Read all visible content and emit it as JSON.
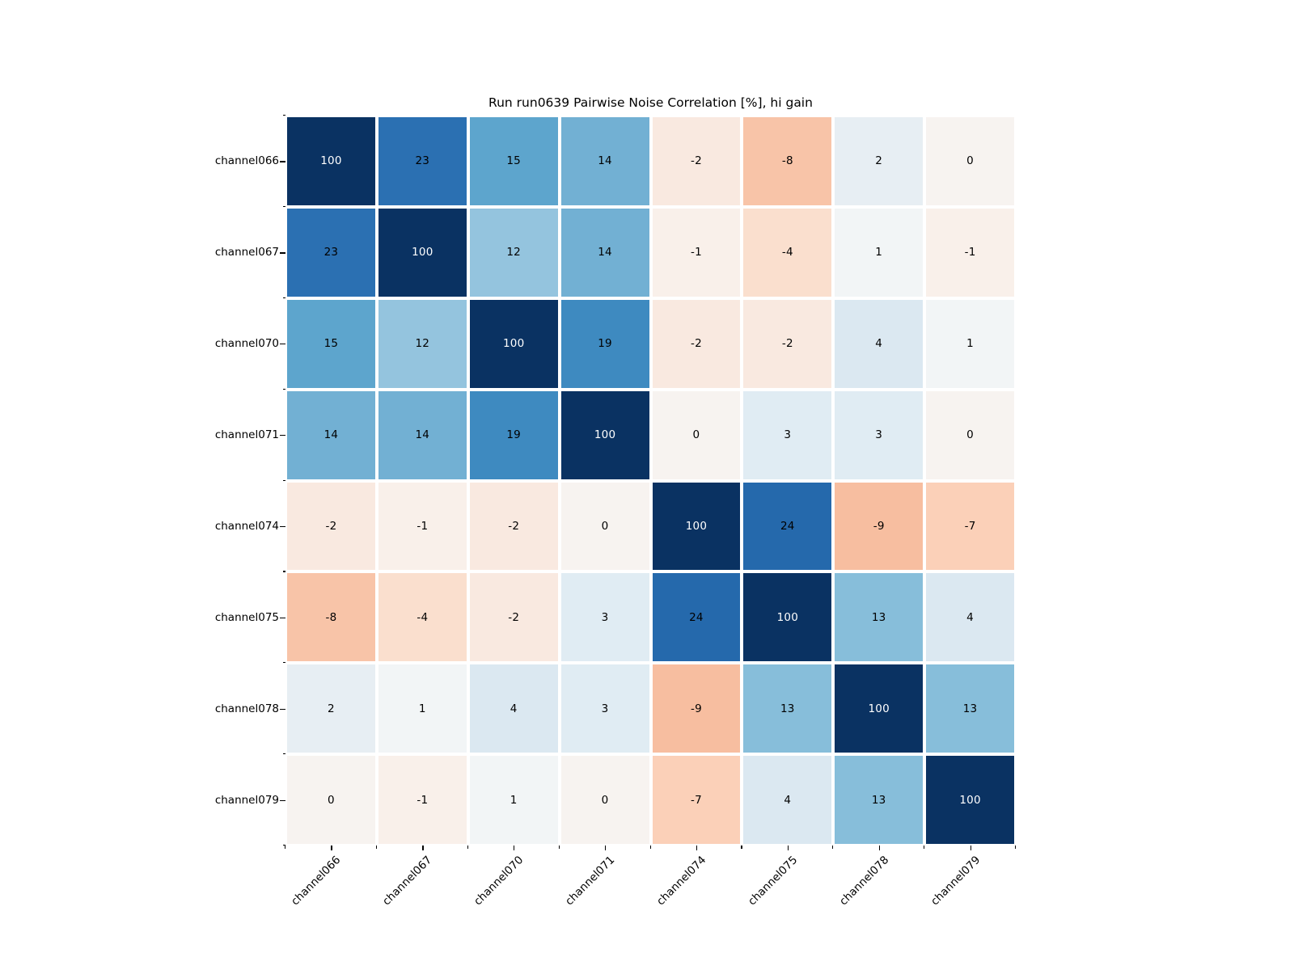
{
  "chart_data": {
    "type": "heatmap",
    "title": "Run run0639 Pairwise Noise Correlation [%], hi gain",
    "x_labels": [
      "channel066",
      "channel067",
      "channel070",
      "channel071",
      "channel074",
      "channel075",
      "channel078",
      "channel079"
    ],
    "y_labels": [
      "channel066",
      "channel067",
      "channel070",
      "channel071",
      "channel074",
      "channel075",
      "channel078",
      "channel079"
    ],
    "matrix": [
      [
        100,
        23,
        15,
        14,
        -2,
        -8,
        2,
        0
      ],
      [
        23,
        100,
        12,
        14,
        -1,
        -4,
        1,
        -1
      ],
      [
        15,
        12,
        100,
        19,
        -2,
        -2,
        4,
        1
      ],
      [
        14,
        14,
        19,
        100,
        0,
        3,
        3,
        0
      ],
      [
        -2,
        -1,
        -2,
        0,
        100,
        24,
        -9,
        -7
      ],
      [
        -8,
        -4,
        -2,
        3,
        24,
        100,
        13,
        4
      ],
      [
        2,
        1,
        4,
        3,
        -9,
        13,
        100,
        13
      ],
      [
        0,
        -1,
        1,
        0,
        -7,
        4,
        13,
        100
      ]
    ],
    "unit": "%",
    "colormap_name": "RdBu (blue = positive, red = negative)",
    "value_colors": {
      "100": "#0a3262",
      "24": "#2569ac",
      "23": "#2b70b2",
      "19": "#3e8ac0",
      "15": "#5da5cd",
      "14": "#72b0d3",
      "13": "#87beda",
      "12": "#94c4de",
      "4": "#dbe8f1",
      "3": "#e0ecf3",
      "2": "#e7eef3",
      "1": "#f2f5f6",
      "0": "#f7f3f0",
      "-1": "#f9f0ea",
      "-2": "#f9e9e0",
      "-4": "#fadfce",
      "-7": "#fbd0b8",
      "-8": "#f8c4a8",
      "-9": "#f7bea0"
    },
    "annotation_colors": {
      "on_dark": "#ffffff",
      "on_light": "#000000"
    },
    "light_text_values": [
      100
    ],
    "axis": {
      "tick_color": "#000000",
      "label_color": "#000000"
    },
    "background": "#ffffff",
    "grid_line_color": "#ffffff",
    "legend": "none"
  }
}
